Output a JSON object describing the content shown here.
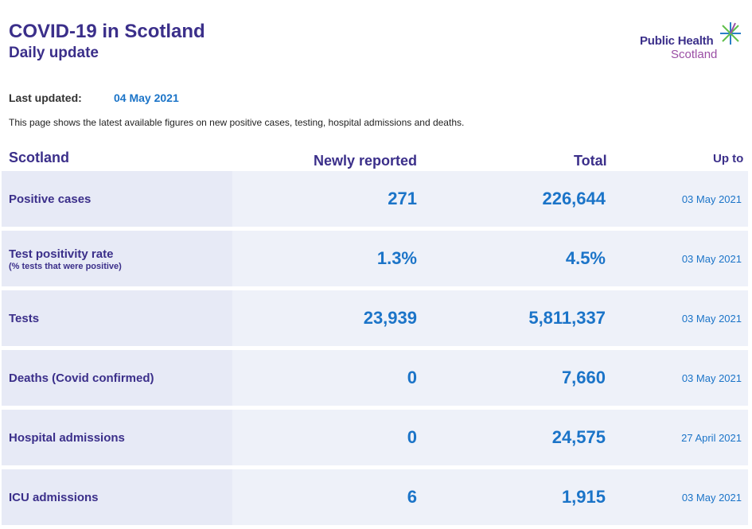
{
  "header": {
    "title": "COVID-19 in Scotland",
    "subtitle": "Daily update"
  },
  "logo": {
    "line1": "Public Health",
    "line2": "Scotland",
    "colors": {
      "primary": "#3b2f8a",
      "secondary": "#9b4fa5",
      "star_green": "#5fbf4a",
      "star_blue": "#2a7fc7"
    }
  },
  "meta": {
    "last_updated_label": "Last updated:",
    "last_updated_value": "04 May 2021",
    "intro": "This page shows the latest available figures on new positive cases, testing, hospital admissions and deaths."
  },
  "table": {
    "headers": {
      "region": "Scotland",
      "newly_reported": "Newly reported",
      "total": "Total",
      "up_to": "Up to"
    },
    "rows": [
      {
        "label": "Positive cases",
        "sublabel": "",
        "newly_reported": "271",
        "total": "226,644",
        "up_to": "03 May 2021"
      },
      {
        "label": "Test positivity rate",
        "sublabel": "(% tests that were positive)",
        "newly_reported": "1.3%",
        "total": "4.5%",
        "up_to": "03 May 2021"
      },
      {
        "label": "Tests",
        "sublabel": "",
        "newly_reported": "23,939",
        "total": "5,811,337",
        "up_to": "03 May 2021"
      },
      {
        "label": "Deaths (Covid confirmed)",
        "sublabel": "",
        "newly_reported": "0",
        "total": "7,660",
        "up_to": "03 May 2021"
      },
      {
        "label": "Hospital admissions",
        "sublabel": "",
        "newly_reported": "0",
        "total": "24,575",
        "up_to": "27 April 2021"
      },
      {
        "label": "ICU admissions",
        "sublabel": "",
        "newly_reported": "6",
        "total": "1,915",
        "up_to": "03 May 2021"
      }
    ]
  },
  "colors": {
    "heading": "#3b2f8a",
    "value": "#1b74c8",
    "row_bg": "#eef1f9",
    "label_bg": "#e7eaf6"
  }
}
